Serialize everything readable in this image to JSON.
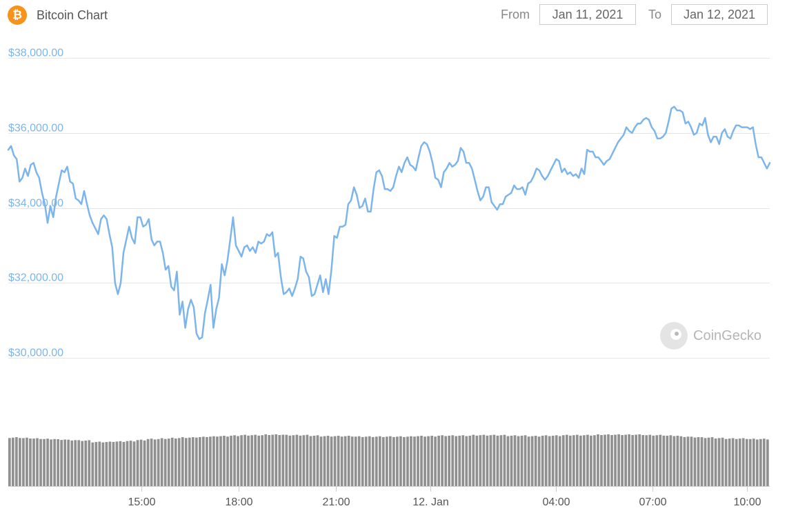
{
  "header": {
    "coin_symbol": "₿",
    "title": "Bitcoin Chart",
    "from_label": "From",
    "from_value": "Jan 11, 2021",
    "to_label": "To",
    "to_value": "Jan 12, 2021"
  },
  "colors": {
    "bitcoin_orange": "#f7931a",
    "line": "#7cb5ec",
    "axis_label": "#7cb5ec",
    "grid": "#e6e6e6",
    "volume_bar": "#909090"
  },
  "watermark": {
    "text": "CoinGecko",
    "icon": "coingecko-logo-icon"
  },
  "chart_data": {
    "type": "line",
    "title": "",
    "xlabel": "",
    "ylabel": "",
    "ylim": [
      30000,
      38000
    ],
    "y_ticks": [
      "$30,000.00",
      "$32,000.00",
      "$34,000.00",
      "$36,000.00",
      "$38,000.00"
    ],
    "y_tick_values": [
      30000,
      32000,
      34000,
      36000,
      38000
    ],
    "x_ticks": [
      "15:00",
      "18:00",
      "21:00",
      "12. Jan",
      "04:00",
      "07:00",
      "10:00"
    ],
    "grid": true,
    "series": [
      {
        "values": [
          35550,
          35650,
          35400,
          35300,
          34700,
          34800,
          35050,
          34850,
          35150,
          35200,
          34950,
          34800,
          34400,
          34100,
          33600,
          34050,
          33750,
          34300,
          34650,
          35000,
          34950,
          35100,
          34700,
          34650,
          34250,
          34200,
          34100,
          34450,
          34100,
          33800,
          33600,
          33450,
          33300,
          33700,
          33800,
          33700,
          33300,
          32950,
          32000,
          31700,
          32000,
          32800,
          33150,
          33500,
          33200,
          33050,
          33750,
          33750,
          33500,
          33550,
          33700,
          33150,
          33000,
          33100,
          33100,
          32800,
          32350,
          32450,
          31900,
          31800,
          32300,
          31150,
          31500,
          30800,
          31300,
          31550,
          31350,
          30650,
          30500,
          30550,
          31200,
          31550,
          31950,
          30800,
          31300,
          31600,
          32500,
          32200,
          32600,
          33150,
          33750,
          33000,
          32850,
          32700,
          32950,
          33000,
          32850,
          32950,
          32800,
          33100,
          33050,
          33100,
          33300,
          33250,
          33350,
          32700,
          32800,
          32150,
          31700,
          31750,
          31850,
          31650,
          31850,
          32100,
          32700,
          32650,
          32300,
          32150,
          31650,
          31700,
          31950,
          32200,
          31750,
          32100,
          31700,
          32350,
          33250,
          33200,
          33500,
          33500,
          33550,
          34100,
          34200,
          34550,
          34350,
          34000,
          34050,
          34250,
          33900,
          33900,
          34500,
          34950,
          35000,
          34850,
          34500,
          34500,
          34450,
          34550,
          34850,
          35100,
          34950,
          35200,
          35350,
          35150,
          35100,
          35000,
          35350,
          35650,
          35750,
          35700,
          35500,
          35200,
          34800,
          34750,
          34550,
          34950,
          35050,
          35200,
          35100,
          35150,
          35250,
          35600,
          35500,
          35200,
          35200,
          35050,
          34750,
          34450,
          34200,
          34300,
          34550,
          34550,
          34150,
          34050,
          33950,
          34100,
          34100,
          34300,
          34350,
          34400,
          34600,
          34500,
          34500,
          34550,
          34350,
          34650,
          34700,
          34850,
          35050,
          35000,
          34850,
          34750,
          34850,
          35000,
          35150,
          35300,
          35250,
          34950,
          35050,
          34900,
          34950,
          34850,
          34900,
          34800,
          35050,
          34900,
          35550,
          35500,
          35500,
          35350,
          35350,
          35250,
          35150,
          35250,
          35300,
          35450,
          35600,
          35750,
          35850,
          35950,
          36150,
          36050,
          36000,
          36150,
          36250,
          36250,
          36350,
          36400,
          36350,
          36150,
          36050,
          35850,
          35850,
          35900,
          36000,
          36300,
          36650,
          36700,
          36600,
          36600,
          36550,
          36250,
          36300,
          36150,
          35950,
          36000,
          36250,
          36200,
          36400,
          35950,
          35750,
          35900,
          35900,
          35700,
          36000,
          36100,
          35900,
          35850,
          36050,
          36200,
          36200,
          36150,
          36150,
          36150,
          36100,
          36150,
          35700,
          35350,
          35350,
          35200,
          35050,
          35200
        ],
        "volume_levels": [
          0.99,
          0.98,
          0.97,
          0.96,
          0.95,
          0.94,
          0.93,
          0.9,
          0.9,
          0.91,
          0.92,
          0.94,
          0.96,
          0.97,
          0.98,
          0.99,
          1.0,
          1.01,
          1.02,
          1.03,
          1.04,
          1.04,
          1.05,
          1.05,
          1.04,
          1.04,
          1.03,
          1.02,
          1.02,
          1.02,
          1.01,
          1.01,
          1.01,
          1.01,
          1.01,
          1.02,
          1.02,
          1.03,
          1.03,
          1.03,
          1.04,
          1.04,
          1.04,
          1.03,
          1.03,
          1.02,
          1.03,
          1.03,
          1.04,
          1.04,
          1.04,
          1.05,
          1.05,
          1.05,
          1.05,
          1.04,
          1.04,
          1.03,
          1.01,
          1.0,
          0.99,
          0.98,
          0.97,
          0.97,
          0.96,
          0.96
        ]
      }
    ]
  }
}
